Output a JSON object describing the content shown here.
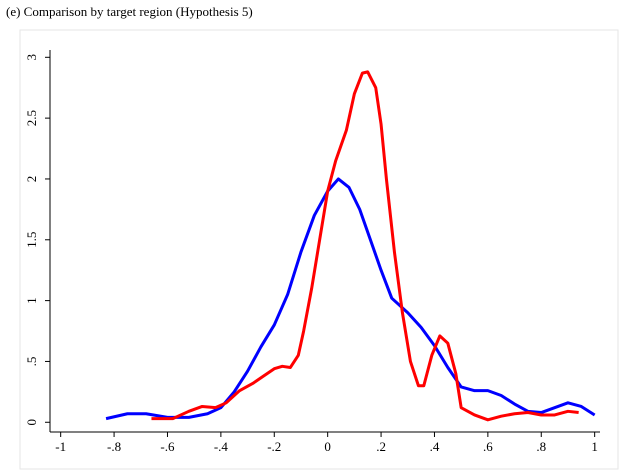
{
  "chart_data": {
    "type": "line",
    "title": "(e) Comparison by target region (Hypothesis 5)",
    "xlim": [
      -1.04,
      1.02
    ],
    "ylim": [
      -0.08,
      3.06
    ],
    "xticks": [
      -1,
      {
        "value": -0.8,
        "label": "-.8"
      },
      {
        "value": -0.6,
        "label": "-.6"
      },
      {
        "value": -0.4,
        "label": "-.4"
      },
      {
        "value": -0.2,
        "label": "-.2"
      },
      0,
      {
        "value": 0.2,
        "label": ".2"
      },
      {
        "value": 0.4,
        "label": ".4"
      },
      {
        "value": 0.6,
        "label": ".6"
      },
      {
        "value": 0.8,
        "label": ".8"
      },
      1
    ],
    "yticks": [
      0,
      {
        "value": 0.5,
        "label": ".5"
      },
      1,
      1.5,
      2,
      2.5,
      3
    ],
    "series": [
      {
        "color": "#0000ff",
        "x": [
          -0.83,
          -0.75,
          -0.68,
          -0.6,
          -0.52,
          -0.45,
          -0.4,
          -0.35,
          -0.3,
          -0.25,
          -0.2,
          -0.15,
          -0.1,
          -0.05,
          0,
          0.04,
          0.08,
          0.12,
          0.16,
          0.2,
          0.24,
          0.3,
          0.35,
          0.4,
          0.45,
          0.5,
          0.55,
          0.6,
          0.65,
          0.7,
          0.75,
          0.8,
          0.85,
          0.9,
          0.95,
          1.0
        ],
        "values": [
          0.03,
          0.07,
          0.07,
          0.04,
          0.04,
          0.07,
          0.12,
          0.25,
          0.42,
          0.62,
          0.8,
          1.05,
          1.4,
          1.7,
          1.9,
          2.0,
          1.93,
          1.75,
          1.5,
          1.25,
          1.02,
          0.9,
          0.78,
          0.63,
          0.45,
          0.29,
          0.26,
          0.26,
          0.22,
          0.15,
          0.09,
          0.08,
          0.12,
          0.16,
          0.13,
          0.06
        ]
      },
      {
        "color": "#ff0000",
        "x": [
          -0.66,
          -0.58,
          -0.52,
          -0.47,
          -0.42,
          -0.38,
          -0.33,
          -0.28,
          -0.24,
          -0.2,
          -0.17,
          -0.14,
          -0.11,
          -0.09,
          -0.06,
          -0.03,
          0,
          0.03,
          0.07,
          0.1,
          0.13,
          0.15,
          0.18,
          0.2,
          0.22,
          0.25,
          0.28,
          0.31,
          0.34,
          0.36,
          0.39,
          0.42,
          0.45,
          0.48,
          0.5,
          0.55,
          0.6,
          0.65,
          0.7,
          0.75,
          0.8,
          0.85,
          0.9,
          0.94
        ],
        "values": [
          0.03,
          0.03,
          0.09,
          0.13,
          0.12,
          0.16,
          0.26,
          0.32,
          0.38,
          0.44,
          0.46,
          0.45,
          0.55,
          0.75,
          1.1,
          1.5,
          1.9,
          2.15,
          2.4,
          2.7,
          2.87,
          2.88,
          2.75,
          2.45,
          2.0,
          1.4,
          0.9,
          0.5,
          0.3,
          0.3,
          0.55,
          0.71,
          0.65,
          0.4,
          0.12,
          0.06,
          0.02,
          0.05,
          0.07,
          0.08,
          0.06,
          0.06,
          0.09,
          0.08
        ]
      }
    ]
  }
}
